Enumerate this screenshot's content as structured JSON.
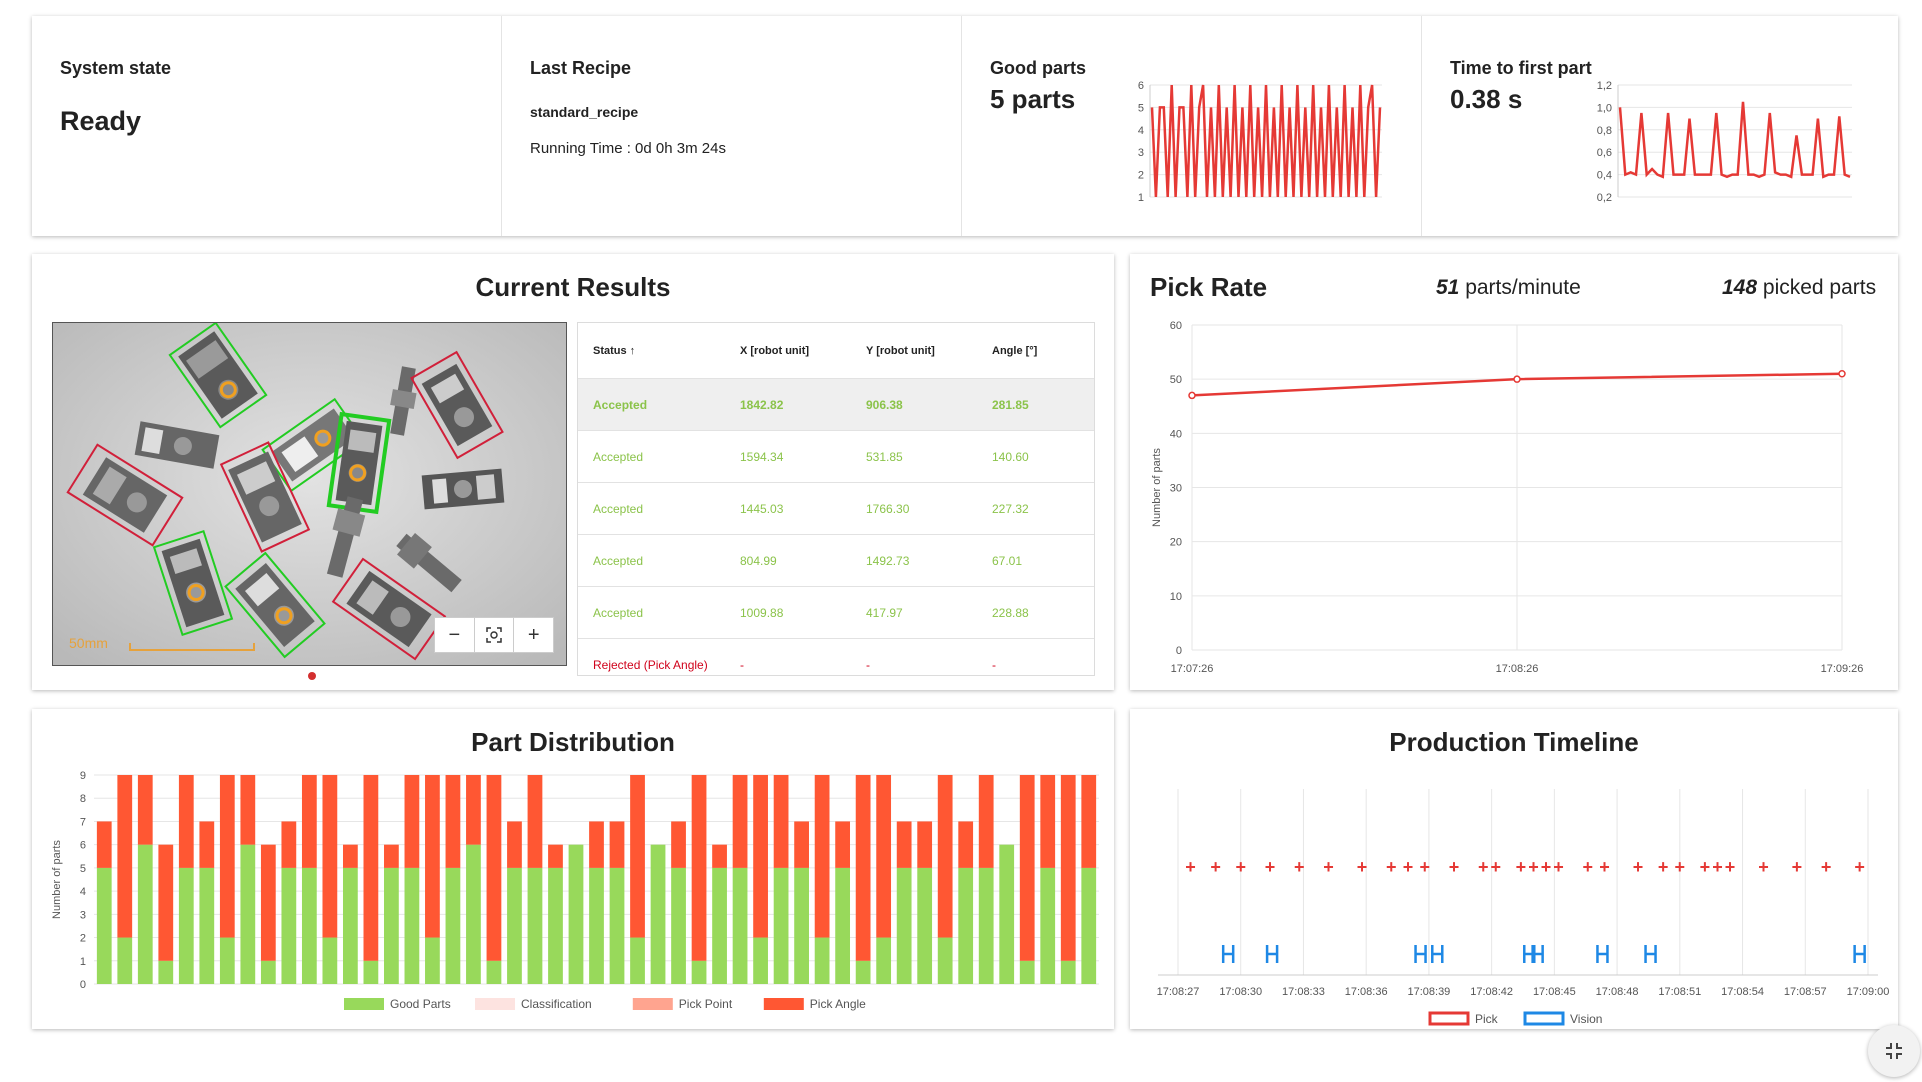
{
  "kpis": {
    "system_state": {
      "label": "System state",
      "value": "Ready"
    },
    "last_recipe": {
      "label": "Last Recipe",
      "name": "standard_recipe",
      "running_time": "Running Time : 0d 0h 3m 24s"
    },
    "good_parts": {
      "label": "Good parts",
      "value": "5 parts"
    },
    "time_first_part": {
      "label": "Time to first part",
      "value": "0.38 s"
    }
  },
  "current_results": {
    "title": "Current Results",
    "scale_label": "50mm",
    "zoom": {
      "minus": "−",
      "fit": "⛶",
      "plus": "+"
    },
    "table": {
      "headers": [
        "Status ↑",
        "X [robot unit]",
        "Y [robot unit]",
        "Angle [°]"
      ],
      "rows": [
        [
          "Accepted",
          "1842.82",
          "906.38",
          "281.85"
        ],
        [
          "Accepted",
          "1594.34",
          "531.85",
          "140.60"
        ],
        [
          "Accepted",
          "1445.03",
          "1766.30",
          "227.32"
        ],
        [
          "Accepted",
          "804.99",
          "1492.73",
          "67.01"
        ],
        [
          "Accepted",
          "1009.88",
          "417.97",
          "228.88"
        ],
        [
          "Rejected (Pick Angle)",
          "-",
          "-",
          "-"
        ]
      ]
    }
  },
  "pick_rate": {
    "title": "Pick Rate",
    "rate_value": "51",
    "rate_unit": "parts/minute",
    "picked_value": "148",
    "picked_unit": "picked parts"
  },
  "part_distribution": {
    "title": "Part Distribution"
  },
  "production_timeline": {
    "title": "Production Timeline"
  },
  "colors": {
    "good": "#98d95b",
    "pick_angle": "#ff5733",
    "classification": "#fde3e0",
    "pick_point": "#ffa48f",
    "line_red": "#e53935",
    "vision_blue": "#1e88e5",
    "accepted": "#8bc34a",
    "rejected": "#d0021b"
  },
  "chart_data": [
    {
      "type": "line",
      "xlabel": "",
      "ylabel": "",
      "ylim": [
        1,
        6
      ],
      "yticks": [
        "1",
        "2",
        "3",
        "4",
        "5",
        "6"
      ],
      "values": [
        5,
        1,
        5,
        5,
        1,
        6,
        1,
        5,
        5,
        1,
        6,
        1,
        5,
        6,
        1,
        5,
        1,
        6,
        1,
        5,
        1,
        6,
        1,
        5,
        1,
        6,
        1,
        5,
        1,
        6,
        1,
        5,
        1,
        6,
        1,
        5,
        1,
        6,
        1,
        5,
        1,
        6,
        1,
        5,
        1,
        6,
        1,
        5,
        1,
        6,
        1,
        5,
        1,
        6,
        1,
        5,
        6,
        1,
        5
      ]
    },
    {
      "type": "line",
      "xlabel": "",
      "ylabel": "",
      "ylim": [
        0.2,
        1.2
      ],
      "yticks": [
        "0,2",
        "0,4",
        "0,6",
        "0,8",
        "1,0",
        "1,2"
      ],
      "values": [
        1.0,
        0.4,
        0.42,
        0.4,
        0.95,
        0.4,
        0.45,
        0.4,
        0.38,
        0.95,
        0.4,
        0.4,
        0.4,
        0.9,
        0.4,
        0.4,
        0.4,
        0.4,
        0.95,
        0.4,
        0.38,
        0.4,
        0.4,
        1.05,
        0.4,
        0.4,
        0.38,
        0.4,
        0.95,
        0.42,
        0.4,
        0.4,
        0.38,
        0.75,
        0.4,
        0.4,
        0.4,
        0.9,
        0.38,
        0.4,
        0.4,
        0.92,
        0.4,
        0.38
      ]
    },
    {
      "type": "line",
      "title": "",
      "xlabel": "",
      "ylabel": "Number of parts",
      "ylim": [
        0,
        60
      ],
      "yticks": [
        "0",
        "10",
        "20",
        "30",
        "40",
        "50",
        "60"
      ],
      "x": [
        "17:07:26",
        "17:08:26",
        "17:09:26"
      ],
      "values": [
        47,
        50,
        51
      ]
    },
    {
      "type": "bar",
      "stacked": true,
      "xlabel": "",
      "ylabel": "Number of parts",
      "ylim": [
        0,
        9
      ],
      "yticks": [
        "0",
        "1",
        "2",
        "3",
        "4",
        "5",
        "6",
        "7",
        "8",
        "9"
      ],
      "series": [
        {
          "name": "Good Parts",
          "values": [
            5,
            2,
            6,
            1,
            5,
            5,
            2,
            6,
            1,
            5,
            5,
            2,
            5,
            1,
            5,
            5,
            2,
            5,
            6,
            1,
            5,
            5,
            5,
            6,
            5,
            5,
            2,
            6,
            5,
            1,
            5,
            5,
            2,
            5,
            5,
            2,
            5,
            1,
            2,
            5,
            5,
            2,
            5,
            5,
            6,
            1,
            5,
            1,
            5
          ]
        },
        {
          "name": "Classification",
          "values": [
            0,
            0,
            0,
            0,
            0,
            0,
            0,
            0,
            0,
            0,
            0,
            0,
            0,
            0,
            0,
            0,
            0,
            0,
            0,
            0,
            0,
            0,
            0,
            0,
            0,
            0,
            0,
            0,
            0,
            0,
            0,
            0,
            0,
            0,
            0,
            0,
            0,
            0,
            0,
            0,
            0,
            0,
            0,
            0,
            0,
            0,
            0,
            0,
            0
          ]
        },
        {
          "name": "Pick Point",
          "values": [
            0,
            0,
            0,
            0,
            0,
            0,
            0,
            0,
            0,
            0,
            0,
            0,
            0,
            0,
            0,
            0,
            0,
            0,
            0,
            0,
            0,
            0,
            0,
            0,
            0,
            0,
            0,
            0,
            0,
            0,
            0,
            0,
            0,
            0,
            0,
            0,
            0,
            0,
            0,
            0,
            0,
            0,
            0,
            0,
            0,
            0,
            0,
            0,
            0
          ]
        },
        {
          "name": "Pick Angle",
          "values": [
            2,
            7,
            3,
            5,
            4,
            2,
            7,
            3,
            5,
            2,
            4,
            7,
            1,
            8,
            1,
            4,
            7,
            4,
            3,
            8,
            2,
            4,
            1,
            0,
            2,
            2,
            7,
            0,
            2,
            8,
            1,
            4,
            7,
            4,
            2,
            7,
            2,
            8,
            7,
            2,
            2,
            7,
            2,
            4,
            0,
            8,
            4,
            8,
            4
          ]
        }
      ]
    },
    {
      "type": "scatter",
      "xlabel": "",
      "ylabel": "",
      "x_ticks": [
        "17:08:27",
        "17:08:30",
        "17:08:33",
        "17:08:36",
        "17:08:39",
        "17:08:42",
        "17:08:45",
        "17:08:48",
        "17:08:51",
        "17:08:54",
        "17:08:57",
        "17:09:00"
      ],
      "series": [
        {
          "name": "Pick",
          "values": [
            27.6,
            28.8,
            30.0,
            31.4,
            32.8,
            34.2,
            35.8,
            37.2,
            38.0,
            38.8,
            40.2,
            41.6,
            42.2,
            43.4,
            44.0,
            44.6,
            45.2,
            46.6,
            47.4,
            49.0,
            50.2,
            51.0,
            52.2,
            52.8,
            53.4,
            55.0,
            56.6,
            58.0,
            59.6
          ]
        },
        {
          "name": "Vision",
          "values": [
            29.4,
            31.5,
            38.6,
            39.4,
            43.8,
            44.2,
            47.3,
            49.6,
            59.6
          ]
        }
      ]
    }
  ]
}
